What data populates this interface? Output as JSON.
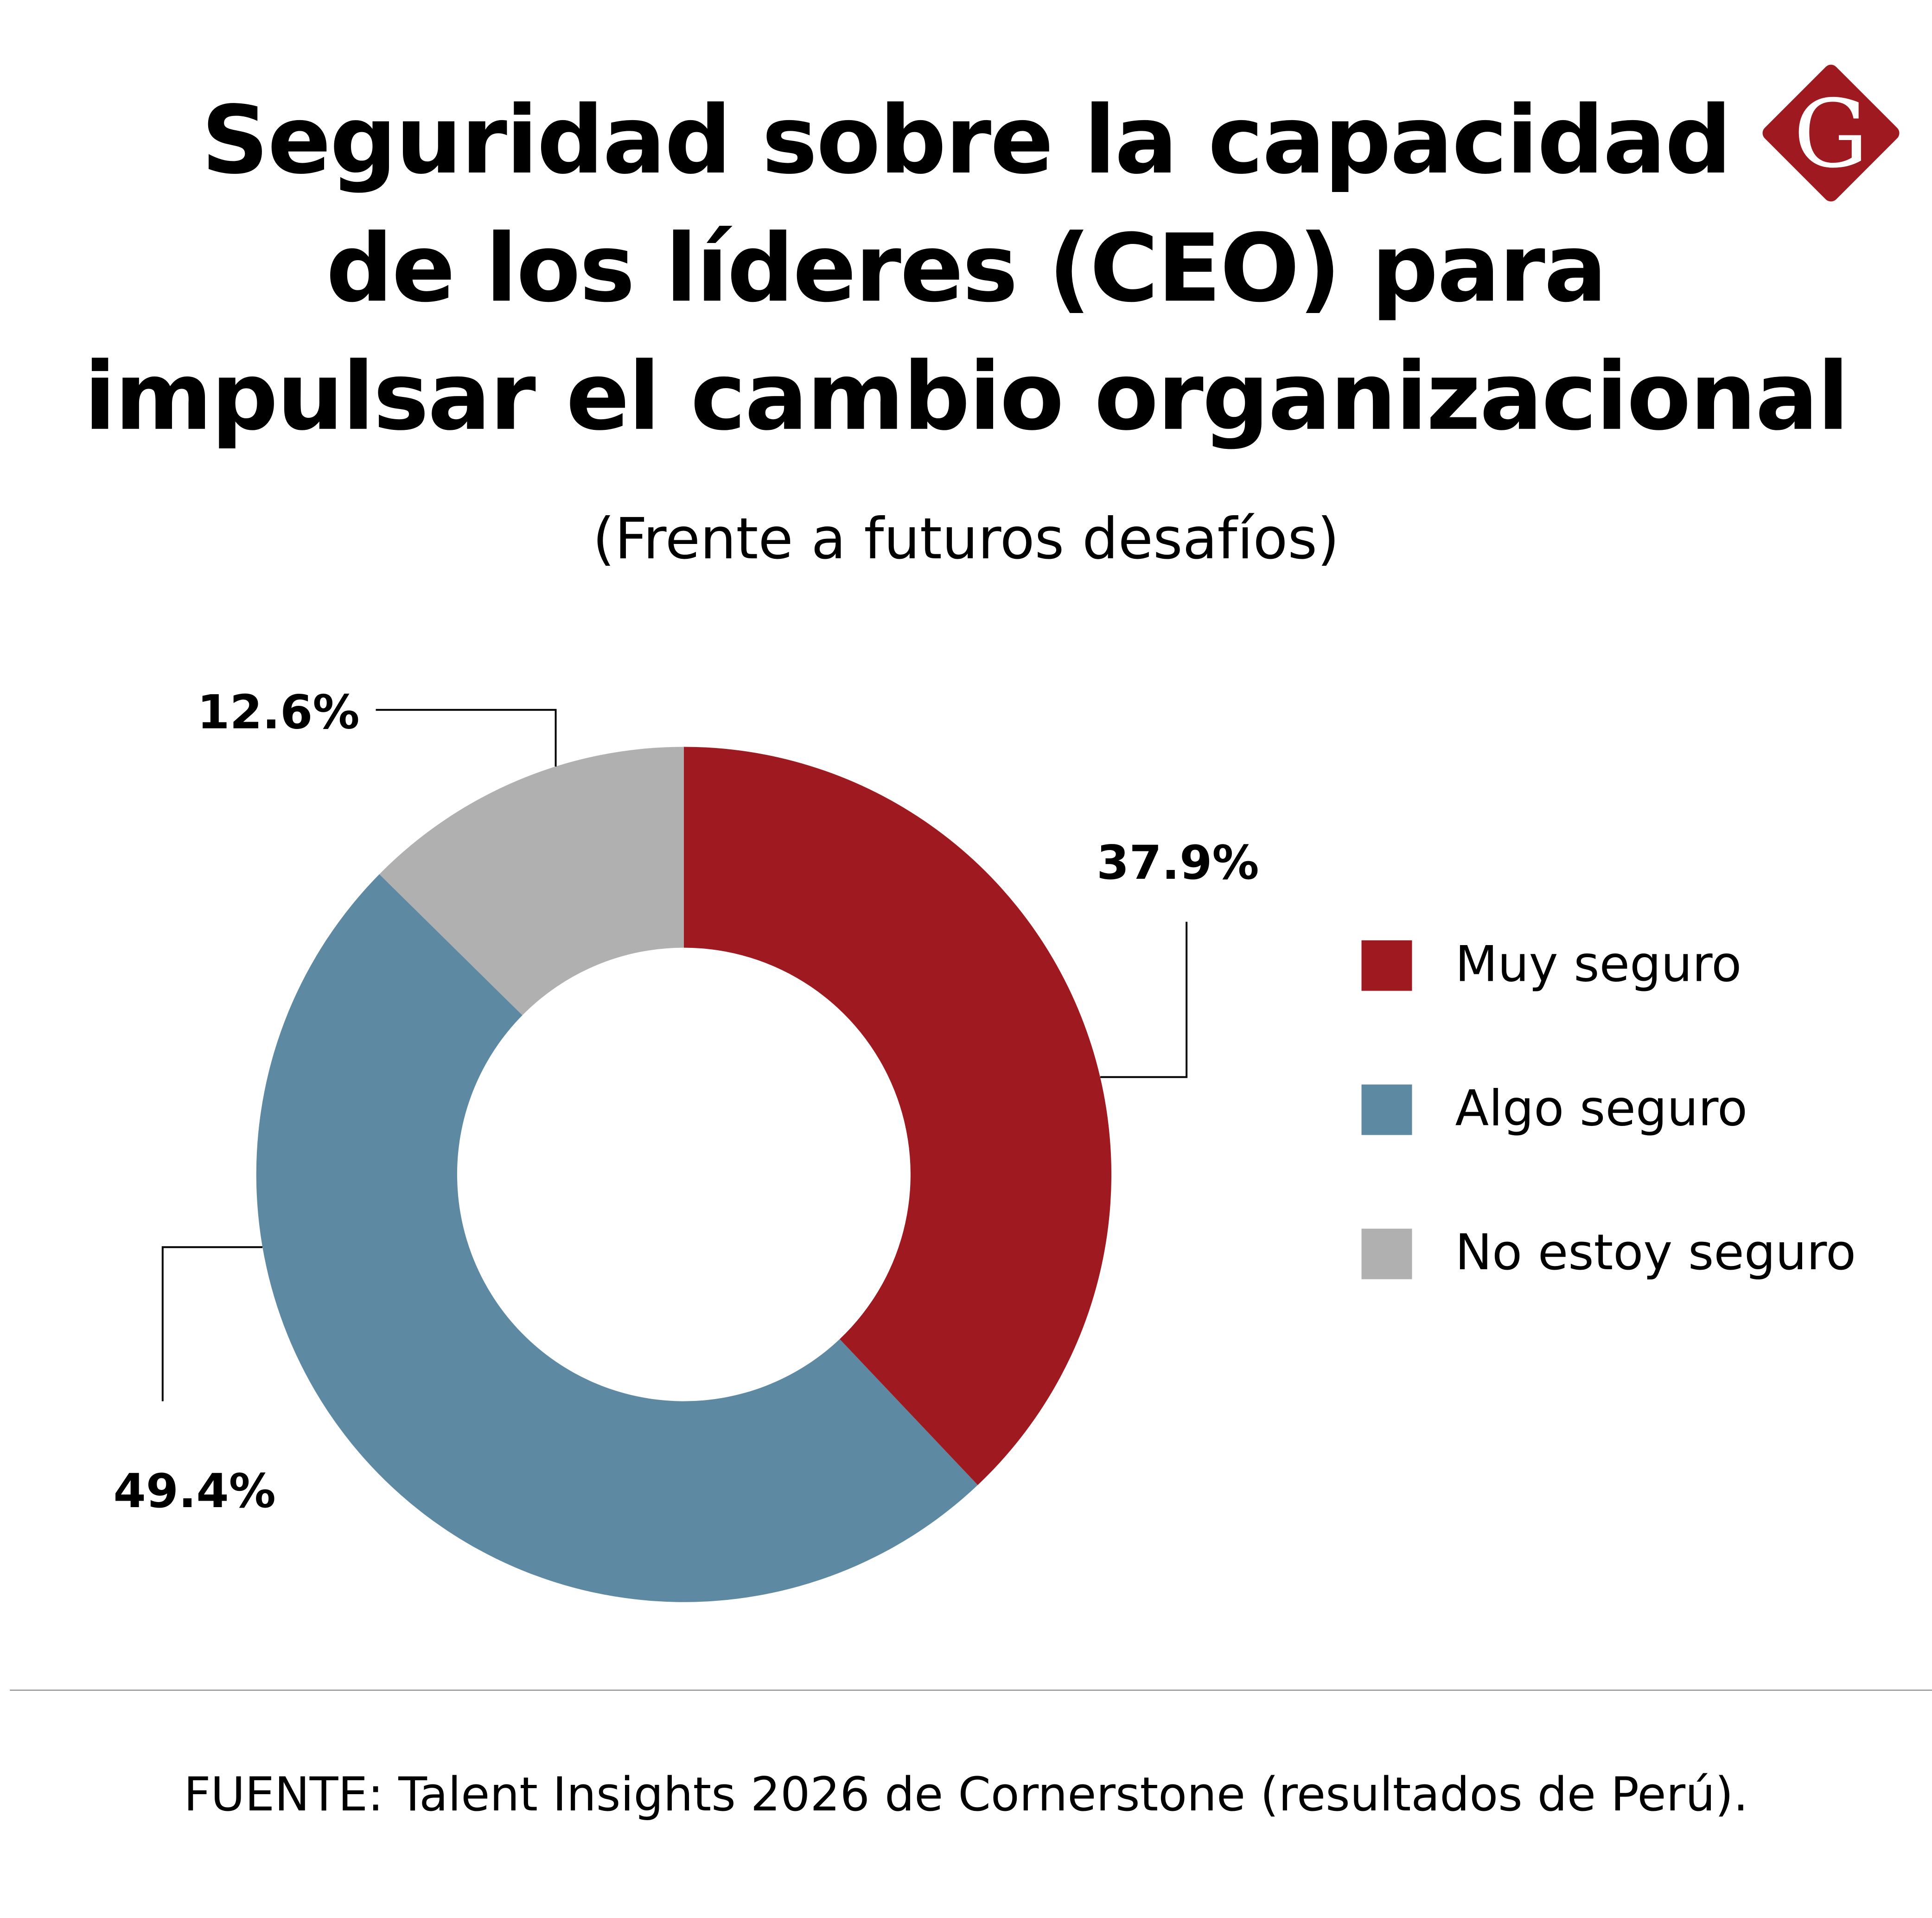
{
  "title_lines": [
    "Seguridad sobre la capacidad",
    "de los líderes (CEO) para",
    "impulsar el cambio organizacional"
  ],
  "subtitle": "(Frente a futuros desafíos)",
  "logo": {
    "letter": "G",
    "color": "#9e1a20"
  },
  "chart_data": {
    "type": "pie",
    "donut": true,
    "title": "Seguridad sobre la capacidad de los líderes (CEO) para impulsar el cambio organizacional",
    "subtitle": "(Frente a futuros desafíos)",
    "legend_position": "right",
    "slices": [
      {
        "name": "Muy seguro",
        "value": 37.9,
        "label": "37.9%",
        "color": "#9e1a20"
      },
      {
        "name": "Algo seguro",
        "value": 49.4,
        "label": "49.4%",
        "color": "#5e89a3"
      },
      {
        "name": "No estoy seguro",
        "value": 12.6,
        "label": "12.6%",
        "color": "#b1b0b1"
      }
    ]
  },
  "footer": "FUENTE: Talent Insights 2026 de Cornerstone (resultados de Perú)."
}
